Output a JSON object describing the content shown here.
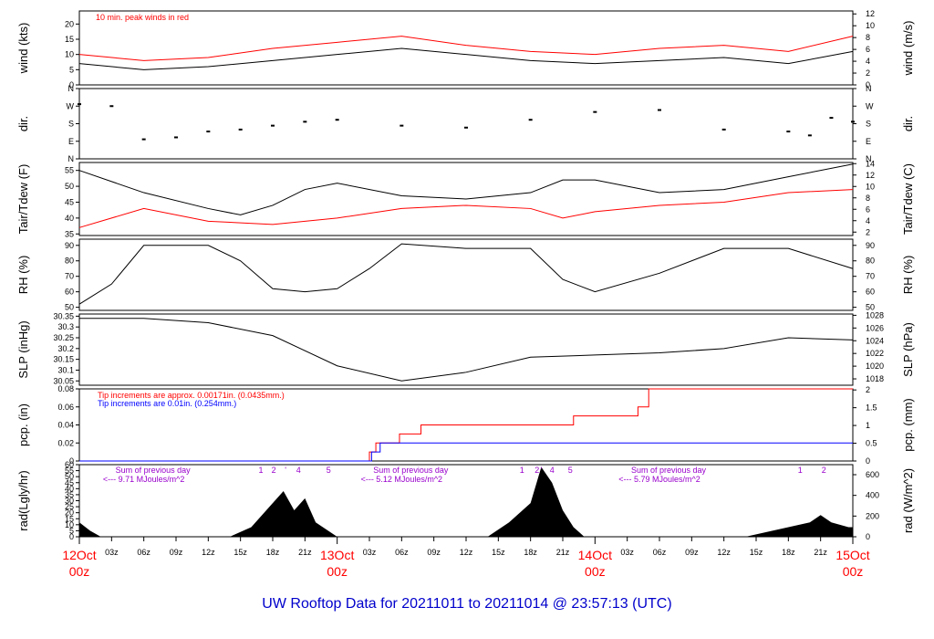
{
  "colors": {
    "axis": "#000000",
    "red": "#ff0000",
    "blue": "#0000ff",
    "purple": "#9900cc",
    "title": "#0000cc"
  },
  "title": "UW Rooftop Data for 20211011  to  20211014 @ 23:57:13  (UTC)",
  "chart_data": [
    {
      "id": "wind",
      "type": "line",
      "ylabel": "wind (kts)",
      "ylabel_right": "wind (m/s)",
      "ylim": [
        0,
        24.3
      ],
      "yticks": [
        0,
        5,
        10,
        15,
        20
      ],
      "ylim_right": [
        0,
        12.5
      ],
      "yticks_right": [
        0,
        2,
        4,
        6,
        8,
        10,
        12
      ],
      "annotation": "10 min. peak winds in red",
      "series": [
        {
          "color": "#000000",
          "x": [
            0,
            6,
            12,
            18,
            24,
            30,
            36,
            42,
            48,
            54,
            60,
            66,
            72
          ],
          "y": [
            7,
            5,
            6,
            8,
            10,
            12,
            10,
            8,
            7,
            8,
            9,
            7,
            11
          ]
        },
        {
          "color": "#ff0000",
          "x": [
            0,
            6,
            12,
            18,
            24,
            30,
            36,
            42,
            48,
            54,
            60,
            66,
            72
          ],
          "y": [
            10,
            8,
            9,
            12,
            14,
            16,
            13,
            11,
            10,
            12,
            13,
            11,
            16
          ]
        }
      ]
    },
    {
      "id": "dir",
      "type": "scatter",
      "ylabel": "dir.",
      "ylabel_right": "dir.",
      "ylim": [
        0,
        360
      ],
      "ytick_values": [
        0,
        90,
        180,
        270,
        360
      ],
      "ytick_labels": [
        "N",
        "E",
        "S",
        "W",
        "N"
      ],
      "series": [
        {
          "color": "#000000",
          "x": [
            0,
            3,
            6,
            9,
            12,
            15,
            18,
            21,
            24,
            30,
            36,
            42,
            48,
            54,
            60,
            66,
            68,
            70,
            72
          ],
          "y": [
            280,
            270,
            100,
            110,
            140,
            150,
            170,
            190,
            200,
            170,
            160,
            200,
            240,
            250,
            150,
            140,
            120,
            210,
            190
          ]
        }
      ]
    },
    {
      "id": "temp",
      "type": "line",
      "ylabel": "Tair/Tdew (F)",
      "ylabel_right": "Tair/Tdew (C)",
      "ylim": [
        34.5,
        57.5
      ],
      "yticks": [
        35,
        40,
        45,
        50,
        55
      ],
      "ylim_right": [
        1.4,
        14.2
      ],
      "yticks_right": [
        2,
        4,
        6,
        8,
        10,
        12,
        14
      ],
      "series": [
        {
          "color": "#000000",
          "x": [
            0,
            6,
            12,
            15,
            18,
            21,
            24,
            30,
            36,
            42,
            45,
            48,
            54,
            60,
            66,
            72
          ],
          "y": [
            55,
            48,
            43,
            41,
            44,
            49,
            51,
            47,
            46,
            48,
            52,
            52,
            48,
            49,
            53,
            57
          ]
        },
        {
          "color": "#ff0000",
          "x": [
            0,
            6,
            12,
            18,
            24,
            30,
            36,
            42,
            45,
            48,
            54,
            60,
            66,
            72
          ],
          "y": [
            37,
            43,
            39,
            38,
            40,
            43,
            44,
            43,
            40,
            42,
            44,
            45,
            48,
            49
          ]
        }
      ]
    },
    {
      "id": "rh",
      "type": "line",
      "ylabel": "RH (%)",
      "ylabel_right": "RH (%)",
      "ylim": [
        48,
        94
      ],
      "yticks": [
        50,
        60,
        70,
        80,
        90
      ],
      "series": [
        {
          "color": "#000000",
          "x": [
            0,
            3,
            6,
            9,
            12,
            15,
            18,
            21,
            24,
            27,
            30,
            36,
            42,
            45,
            48,
            54,
            60,
            66,
            72
          ],
          "y": [
            52,
            65,
            90,
            90,
            90,
            80,
            62,
            60,
            62,
            75,
            91,
            88,
            88,
            68,
            60,
            72,
            88,
            88,
            75
          ]
        }
      ]
    },
    {
      "id": "slp",
      "type": "line",
      "ylabel": "SLP (inHg)",
      "ylabel_right": "SLP (hPa)",
      "ylim": [
        30.03,
        30.36
      ],
      "yticks": [
        30.05,
        30.1,
        30.15,
        30.2,
        30.25,
        30.3,
        30.35
      ],
      "ylim_right": [
        1017,
        1028.2
      ],
      "yticks_right": [
        1018,
        1020,
        1022,
        1024,
        1026,
        1028
      ],
      "series": [
        {
          "color": "#000000",
          "x": [
            0,
            6,
            12,
            18,
            24,
            30,
            36,
            42,
            48,
            54,
            60,
            66,
            72
          ],
          "y": [
            30.34,
            30.34,
            30.32,
            30.26,
            30.12,
            30.05,
            30.09,
            30.16,
            30.17,
            30.18,
            30.2,
            30.25,
            30.24
          ]
        }
      ]
    },
    {
      "id": "pcp",
      "type": "line",
      "ylabel": "pcp. (in)",
      "ylabel_right": "pcp. (mm)",
      "ylim": [
        0,
        0.08
      ],
      "yticks": [
        0,
        0.02,
        0.04,
        0.06,
        0.08
      ],
      "ylim_right": [
        0,
        2.03
      ],
      "yticks_right": [
        0,
        0.5,
        1,
        1.5,
        2
      ],
      "annotation_red": "Tip increments are approx. 0.00171in. (0.0435mm.)",
      "annotation_blue": "Tip increments are 0.01in. (0.254mm.)",
      "series": [
        {
          "color": "#ff0000",
          "x": [
            0,
            27,
            27.6,
            29.8,
            31.8,
            46,
            52,
            53,
            72
          ],
          "y": [
            0,
            0.01,
            0.02,
            0.03,
            0.04,
            0.05,
            0.06,
            0.08,
            0.08
          ]
        },
        {
          "color": "#0000ff",
          "x": [
            0,
            26.6,
            27.2,
            28,
            72
          ],
          "y": [
            0,
            0,
            0.01,
            0.02,
            0.02
          ]
        }
      ]
    },
    {
      "id": "rad",
      "type": "area",
      "ylabel": "rad(Lgly/hr)",
      "ylabel_right": "rad (W/m^2)",
      "ylim": [
        0,
        60
      ],
      "yticks": [
        0,
        5,
        10,
        15,
        20,
        25,
        30,
        35,
        40,
        45,
        50,
        55,
        60
      ],
      "ylim_right": [
        0,
        697
      ],
      "yticks_right": [
        0,
        200,
        400,
        600
      ],
      "annotations": [
        {
          "hour": 6,
          "text": "Sum of previous day"
        },
        {
          "hour": 6,
          "text": "<--- 9.71 MJoules/m^2"
        },
        {
          "hour": 30,
          "text": "Sum of previous day"
        },
        {
          "hour": 30,
          "text": "<--- 5.12 MJoules/m^2"
        },
        {
          "hour": 54,
          "text": "Sum of previous day"
        },
        {
          "hour": 54,
          "text": "<--- 5.79 MJoules/m^2"
        }
      ],
      "markers": [
        {
          "hour": 16.9,
          "text": "1"
        },
        {
          "hour": 18.1,
          "text": "2"
        },
        {
          "hour": 19.2,
          "text": "'"
        },
        {
          "hour": 20.4,
          "text": "4"
        },
        {
          "hour": 23.2,
          "text": "5"
        },
        {
          "hour": 41.2,
          "text": "1"
        },
        {
          "hour": 42.6,
          "text": "2"
        },
        {
          "hour": 43.0,
          "text": "'"
        },
        {
          "hour": 44.0,
          "text": "4"
        },
        {
          "hour": 45.7,
          "text": "5"
        },
        {
          "hour": 67.1,
          "text": "1"
        },
        {
          "hour": 69.3,
          "text": "2"
        }
      ],
      "series": [
        {
          "color": "#000000",
          "x": [
            0,
            1,
            2,
            14,
            16,
            18,
            19,
            20,
            21,
            22,
            24,
            38,
            40,
            42,
            43,
            44,
            45,
            46,
            47,
            62,
            66,
            68,
            69,
            70,
            71.6,
            72
          ],
          "y": [
            12,
            5,
            0,
            0,
            8,
            28,
            38,
            22,
            32,
            12,
            0,
            0,
            12,
            28,
            58,
            45,
            22,
            8,
            0,
            0,
            8,
            12,
            18,
            12,
            8,
            8
          ]
        }
      ]
    }
  ],
  "x_axis": {
    "range_hours": [
      0,
      72
    ],
    "hour_ticks": [
      {
        "hour": 3,
        "label": "03z"
      },
      {
        "hour": 6,
        "label": "06z"
      },
      {
        "hour": 9,
        "label": "09z"
      },
      {
        "hour": 12,
        "label": "12z"
      },
      {
        "hour": 15,
        "label": "15z"
      },
      {
        "hour": 18,
        "label": "18z"
      },
      {
        "hour": 21,
        "label": "21z"
      },
      {
        "hour": 27,
        "label": "03z"
      },
      {
        "hour": 30,
        "label": "06z"
      },
      {
        "hour": 33,
        "label": "09z"
      },
      {
        "hour": 36,
        "label": "12z"
      },
      {
        "hour": 39,
        "label": "15z"
      },
      {
        "hour": 42,
        "label": "18z"
      },
      {
        "hour": 45,
        "label": "21z"
      },
      {
        "hour": 51,
        "label": "03z"
      },
      {
        "hour": 54,
        "label": "06z"
      },
      {
        "hour": 57,
        "label": "09z"
      },
      {
        "hour": 60,
        "label": "12z"
      },
      {
        "hour": 63,
        "label": "15z"
      },
      {
        "hour": 66,
        "label": "18z"
      },
      {
        "hour": 69,
        "label": "21z"
      }
    ],
    "day_ticks": [
      {
        "hour": 0,
        "date": "12Oct",
        "time": "00z"
      },
      {
        "hour": 24,
        "date": "13Oct",
        "time": "00z"
      },
      {
        "hour": 48,
        "date": "14Oct",
        "time": "00z"
      },
      {
        "hour": 72,
        "date": "15Oct",
        "time": "00z"
      }
    ]
  }
}
